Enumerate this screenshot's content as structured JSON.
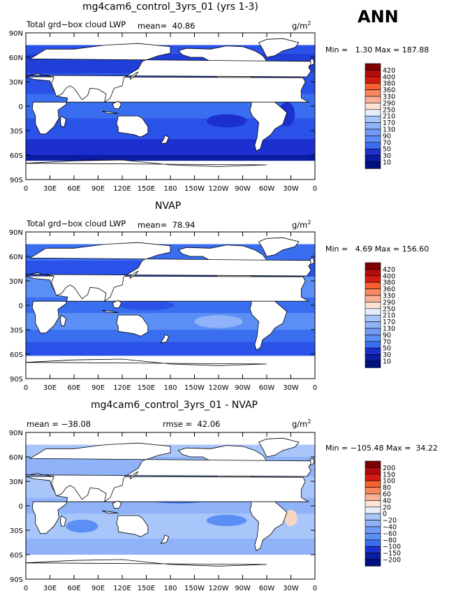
{
  "season": "ANN",
  "units": "g/m",
  "units_exp": "2",
  "cb1": [
    "420",
    "400",
    "380",
    "360",
    "330",
    "290",
    "250",
    "210",
    "170",
    "130",
    "90",
    "70",
    "50",
    "30",
    "10"
  ],
  "cb3": [
    "200",
    "150",
    "100",
    "80",
    "60",
    "40",
    "20",
    "0",
    "−20",
    "−40",
    "−60",
    "−80",
    "−100",
    "−150",
    "−200"
  ],
  "chart_data": [
    {
      "type": "heatmap",
      "title": "mg4cam6_control_3yrs_01 (yrs 1-3)",
      "left_label": "Total grd−box cloud LWP",
      "mean_label": "mean=",
      "mean": "40.86",
      "min_label": "Min =",
      "min": "1.30",
      "max_label": "Max =",
      "max": "187.88",
      "ylabels": [
        "90N",
        "60N",
        "30N",
        "0",
        "30S",
        "60S",
        "90S"
      ],
      "xlabels": [
        "0",
        "30E",
        "60E",
        "90E",
        "120E",
        "150E",
        "180",
        "150W",
        "120W",
        "90W",
        "60W",
        "30W",
        "0"
      ],
      "colorbar_levels": [
        420,
        400,
        380,
        360,
        330,
        290,
        250,
        210,
        170,
        130,
        90,
        70,
        50,
        30,
        10
      ],
      "mask": "ocean",
      "bands": [
        {
          "lat0": 65,
          "lat1": 75,
          "color": "#2a52e8"
        },
        {
          "lat0": 40,
          "lat1": 65,
          "color": "#1f3fd8"
        },
        {
          "lat0": 15,
          "lat1": 40,
          "color": "#2a52e8"
        },
        {
          "lat0": -15,
          "lat1": 15,
          "color": "#3a6ef0"
        },
        {
          "lat0": -40,
          "lat1": -15,
          "color": "#2a52e8"
        },
        {
          "lat0": -60,
          "lat1": -40,
          "color": "#1c2fcf"
        },
        {
          "lat0": -67,
          "lat1": -60,
          "color": "#0a1ca0"
        }
      ],
      "blobs": [
        {
          "lon": 250,
          "lat": -18,
          "rx": 25,
          "ry": 8,
          "color": "#1c2fcf"
        },
        {
          "lon": 120,
          "lat": 15,
          "rx": 30,
          "ry": 10,
          "color": "#5b8ff5"
        },
        {
          "lon": 325,
          "lat": -10,
          "rx": 10,
          "ry": 15,
          "color": "#1c2fcf"
        }
      ]
    },
    {
      "type": "heatmap",
      "title": "NVAP",
      "left_label": "Total grd−box cloud LWP",
      "mean_label": "mean=",
      "mean": "78.94",
      "min_label": "Min =",
      "min": "4.69",
      "max_label": "Max =",
      "max": "156.60",
      "ylabels": [
        "90N",
        "60N",
        "30N",
        "0",
        "30S",
        "60S",
        "90S"
      ],
      "xlabels": [
        "0",
        "30E",
        "60E",
        "90E",
        "120E",
        "150E",
        "180",
        "150W",
        "120W",
        "90W",
        "60W",
        "30W",
        "0"
      ],
      "colorbar_levels": [
        420,
        400,
        380,
        360,
        330,
        290,
        250,
        210,
        170,
        130,
        90,
        70,
        50,
        30,
        10
      ],
      "mask": "ocean",
      "bands": [
        {
          "lat0": 55,
          "lat1": 75,
          "color": "#3a6ef0"
        },
        {
          "lat0": 35,
          "lat1": 55,
          "color": "#2a52e8"
        },
        {
          "lat0": 10,
          "lat1": 35,
          "color": "#5b8ff5"
        },
        {
          "lat0": -10,
          "lat1": 10,
          "color": "#3a6ef0"
        },
        {
          "lat0": -30,
          "lat1": -10,
          "color": "#5b8ff5"
        },
        {
          "lat0": -45,
          "lat1": -30,
          "color": "#3a6ef0"
        },
        {
          "lat0": -62,
          "lat1": -45,
          "color": "#2a52e8"
        }
      ],
      "blobs": [
        {
          "lon": 150,
          "lat": 0,
          "rx": 35,
          "ry": 6,
          "color": "#2a52e8"
        },
        {
          "lon": 240,
          "lat": -20,
          "rx": 30,
          "ry": 8,
          "color": "#8fb2f8"
        }
      ]
    },
    {
      "type": "heatmap",
      "title": "mg4cam6_control_3yrs_01 - NVAP",
      "left_label": "mean = −38.08",
      "rmse_label": "rmse =",
      "rmse": "42.06",
      "min_label": "Min =",
      "min": "−105.48",
      "max_label": "Max =",
      "max": "34.22",
      "ylabels": [
        "90N",
        "60N",
        "30N",
        "0",
        "30S",
        "60S",
        "90S"
      ],
      "xlabels": [
        "0",
        "30E",
        "60E",
        "90E",
        "120E",
        "150E",
        "180",
        "150W",
        "120W",
        "90W",
        "60W",
        "30W",
        "0"
      ],
      "colorbar_levels": [
        200,
        150,
        100,
        80,
        60,
        40,
        20,
        0,
        -20,
        -40,
        -60,
        -80,
        -100,
        -150,
        -200
      ],
      "mask": "ocean",
      "bands": [
        {
          "lat0": 60,
          "lat1": 75,
          "color": "#a9c6fa"
        },
        {
          "lat0": 35,
          "lat1": 60,
          "color": "#8fb2f8"
        },
        {
          "lat0": 10,
          "lat1": 35,
          "color": "#a9c6fa"
        },
        {
          "lat0": -10,
          "lat1": 10,
          "color": "#8fb2f8"
        },
        {
          "lat0": -40,
          "lat1": -10,
          "color": "#a9c6fa"
        },
        {
          "lat0": -60,
          "lat1": -40,
          "color": "#8fb2f8"
        }
      ],
      "blobs": [
        {
          "lon": 190,
          "lat": 8,
          "rx": 40,
          "ry": 5,
          "color": "#3a6ef0"
        },
        {
          "lon": 250,
          "lat": -18,
          "rx": 25,
          "ry": 7,
          "color": "#5b8ff5"
        },
        {
          "lon": 70,
          "lat": -25,
          "rx": 20,
          "ry": 8,
          "color": "#5b8ff5"
        },
        {
          "lon": 330,
          "lat": -15,
          "rx": 8,
          "ry": 10,
          "color": "#f7d6c4"
        }
      ]
    }
  ],
  "colorbar_colors": [
    "#7f0000",
    "#b30c0c",
    "#d4190e",
    "#ec3a14",
    "#f6612f",
    "#f98860",
    "#fbb196",
    "#fde3d4",
    "#e6eefc",
    "#c7dafb",
    "#a9c6fa",
    "#8fb2f8",
    "#7399f6",
    "#5b8ff5",
    "#3a6ef0",
    "#2a52e8",
    "#1c2fcf",
    "#0a1ca0",
    "#001080"
  ]
}
